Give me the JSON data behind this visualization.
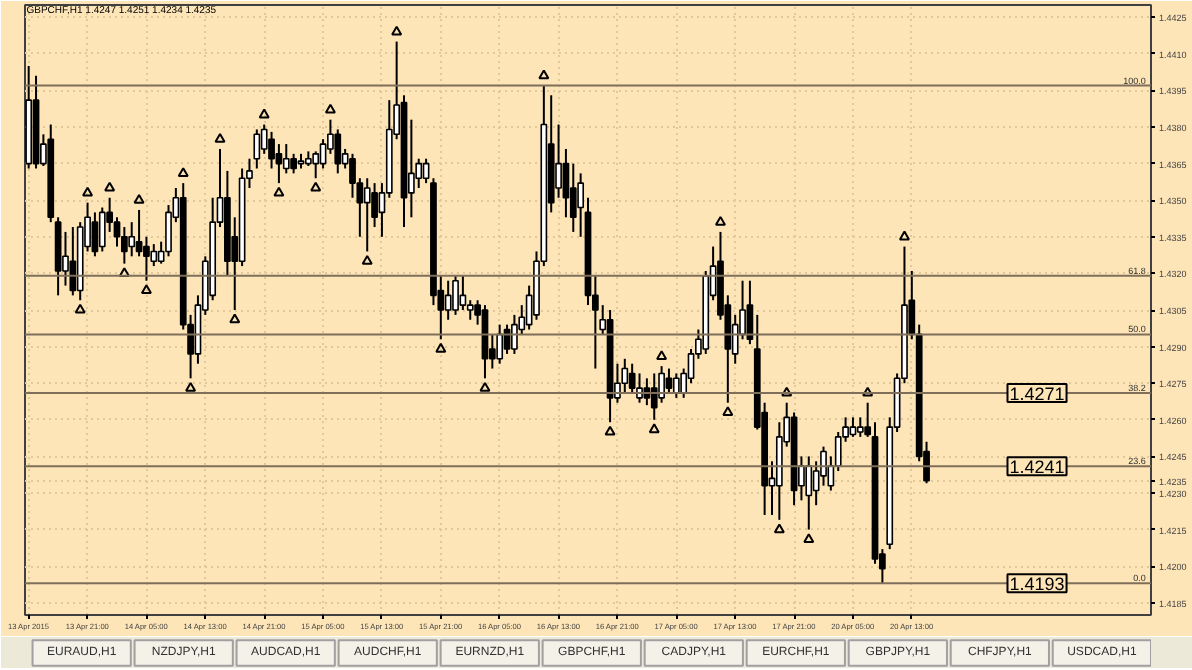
{
  "chart_data": {
    "type": "candlestick",
    "title": "GBPCHF,H1 1.4247 1.4251 1.4234 1.4235",
    "categories": [
      "13 Apr 2015",
      null,
      null,
      null,
      null,
      null,
      null,
      null,
      "13 Apr 21:00",
      null,
      null,
      null,
      null,
      null,
      null,
      null,
      "14 Apr 05:00",
      null,
      null,
      null,
      null,
      null,
      null,
      null,
      "14 Apr 13:00",
      null,
      null,
      null,
      null,
      null,
      null,
      null,
      "14 Apr 21:00",
      null,
      null,
      null,
      null,
      null,
      null,
      null,
      "15 Apr 05:00",
      null,
      null,
      null,
      null,
      null,
      null,
      null,
      "15 Apr 13:00",
      null,
      null,
      null,
      null,
      null,
      null,
      null,
      "15 Apr 21:00",
      null,
      null,
      null,
      null,
      null,
      null,
      null,
      "16 Apr 05:00",
      null,
      null,
      null,
      null,
      null,
      null,
      null,
      "16 Apr 13:00",
      null,
      null,
      null,
      null,
      null,
      null,
      null,
      "16 Apr 21:00",
      null,
      null,
      null,
      null,
      null,
      null,
      null,
      "17 Apr 05:00",
      null,
      null,
      null,
      null,
      null,
      null,
      null,
      "17 Apr 13:00",
      null,
      null,
      null,
      null,
      null,
      null,
      null,
      "17 Apr 21:00",
      null,
      null,
      null,
      null,
      null,
      null,
      null,
      "20 Apr 05:00",
      null,
      null,
      null,
      null,
      null,
      null,
      null,
      "20 Apr 13:00",
      null,
      null,
      null,
      null,
      null,
      null,
      null,
      null,
      null,
      null,
      null,
      null,
      null,
      null,
      null,
      null,
      null,
      null,
      null,
      null,
      null,
      null,
      null,
      null,
      null,
      null,
      null,
      null,
      null,
      null,
      null,
      null
    ],
    "ohlc": [
      [
        1.4365,
        1.4405,
        1.4363,
        1.4391
      ],
      [
        1.4391,
        1.4401,
        1.4363,
        1.4365
      ],
      [
        1.4365,
        1.4377,
        1.4364,
        1.4373
      ],
      [
        1.4375,
        1.4381,
        1.4341,
        1.4343
      ],
      [
        1.4341,
        1.4343,
        1.4311,
        1.4321
      ],
      [
        1.4321,
        1.4337,
        1.4315,
        1.4327
      ],
      [
        1.4325,
        1.4339,
        1.4311,
        1.4313
      ],
      [
        1.4313,
        1.4341,
        1.4309,
        1.4339
      ],
      [
        1.4331,
        1.4349,
        1.4329,
        1.4343
      ],
      [
        1.4341,
        1.4345,
        1.4327,
        1.4329
      ],
      [
        1.4331,
        1.4347,
        1.4329,
        1.4345
      ],
      [
        1.4345,
        1.4351,
        1.4337,
        1.4341
      ],
      [
        1.4341,
        1.4343,
        1.4331,
        1.4335
      ],
      [
        1.4335,
        1.4339,
        1.4324,
        1.4329
      ],
      [
        1.4331,
        1.4341,
        1.4327,
        1.4335
      ],
      [
        1.4333,
        1.4346,
        1.4327,
        1.4329
      ],
      [
        1.4331,
        1.4335,
        1.4317,
        1.4327
      ],
      [
        1.4325,
        1.4332,
        1.4323,
        1.4329
      ],
      [
        1.4325,
        1.4333,
        1.4324,
        1.4329
      ],
      [
        1.4329,
        1.4348,
        1.4327,
        1.4345
      ],
      [
        1.4343,
        1.4355,
        1.4341,
        1.4351
      ],
      [
        1.4351,
        1.4357,
        1.4297,
        1.4299
      ],
      [
        1.4299,
        1.4303,
        1.4277,
        1.4287
      ],
      [
        1.4287,
        1.4311,
        1.4283,
        1.4307
      ],
      [
        1.4305,
        1.4327,
        1.4303,
        1.4325
      ],
      [
        1.4311,
        1.4351,
        1.4309,
        1.4341
      ],
      [
        1.4341,
        1.4371,
        1.4339,
        1.4351
      ],
      [
        1.4351,
        1.4362,
        1.4319,
        1.4325
      ],
      [
        1.4335,
        1.4343,
        1.4305,
        1.4325
      ],
      [
        1.4325,
        1.4363,
        1.4323,
        1.4359
      ],
      [
        1.4359,
        1.4367,
        1.4355,
        1.4362
      ],
      [
        1.4367,
        1.4379,
        1.4363,
        1.4377
      ],
      [
        1.4371,
        1.4381,
        1.4369,
        1.4379
      ],
      [
        1.4375,
        1.4378,
        1.4363,
        1.4367
      ],
      [
        1.4369,
        1.4373,
        1.4357,
        1.4365
      ],
      [
        1.4363,
        1.4373,
        1.4361,
        1.4367
      ],
      [
        1.4367,
        1.4369,
        1.4361,
        1.4363
      ],
      [
        1.4365,
        1.4369,
        1.4363,
        1.4366
      ],
      [
        1.4365,
        1.437,
        1.4364,
        1.4367
      ],
      [
        1.4365,
        1.437,
        1.4359,
        1.4369
      ],
      [
        1.4365,
        1.4375,
        1.4363,
        1.4373
      ],
      [
        1.4371,
        1.4383,
        1.4369,
        1.4377
      ],
      [
        1.4377,
        1.4379,
        1.4361,
        1.4365
      ],
      [
        1.4365,
        1.4371,
        1.4363,
        1.4369
      ],
      [
        1.4367,
        1.4369,
        1.4351,
        1.4357
      ],
      [
        1.4357,
        1.4359,
        1.4335,
        1.4349
      ],
      [
        1.4349,
        1.4359,
        1.4329,
        1.4355
      ],
      [
        1.4353,
        1.4357,
        1.4339,
        1.4343
      ],
      [
        1.4345,
        1.4357,
        1.4335,
        1.4353
      ],
      [
        1.4353,
        1.4391,
        1.4351,
        1.4379
      ],
      [
        1.4377,
        1.4415,
        1.4375,
        1.4389
      ],
      [
        1.439,
        1.4393,
        1.4339,
        1.4351
      ],
      [
        1.4353,
        1.4383,
        1.4343,
        1.4361
      ],
      [
        1.4359,
        1.4367,
        1.4355,
        1.4365
      ],
      [
        1.4359,
        1.4367,
        1.4357,
        1.4365
      ],
      [
        1.4357,
        1.4359,
        1.4307,
        1.4311
      ],
      [
        1.4313,
        1.4319,
        1.4293,
        1.4305
      ],
      [
        1.4305,
        1.4317,
        1.4301,
        1.4311
      ],
      [
        1.4305,
        1.4319,
        1.4303,
        1.4317
      ],
      [
        1.4307,
        1.4319,
        1.4305,
        1.4311
      ],
      [
        1.4305,
        1.4309,
        1.4301,
        1.4307
      ],
      [
        1.4307,
        1.4309,
        1.4299,
        1.4303
      ],
      [
        1.4305,
        1.4307,
        1.4277,
        1.4285
      ],
      [
        1.4289,
        1.4295,
        1.4281,
        1.4285
      ],
      [
        1.4285,
        1.4299,
        1.4283,
        1.4295
      ],
      [
        1.4297,
        1.4299,
        1.4287,
        1.4289
      ],
      [
        1.4289,
        1.4303,
        1.4287,
        1.4299
      ],
      [
        1.4297,
        1.4307,
        1.4295,
        1.4302
      ],
      [
        1.4299,
        1.4315,
        1.4297,
        1.4311
      ],
      [
        1.4303,
        1.4329,
        1.4301,
        1.4325
      ],
      [
        1.4325,
        1.4397,
        1.4323,
        1.4381
      ],
      [
        1.4373,
        1.4393,
        1.4345,
        1.4349
      ],
      [
        1.4355,
        1.4381,
        1.4351,
        1.4365
      ],
      [
        1.4365,
        1.4371,
        1.4343,
        1.4351
      ],
      [
        1.4355,
        1.4365,
        1.4337,
        1.4343
      ],
      [
        1.4347,
        1.4361,
        1.4335,
        1.4357
      ],
      [
        1.4345,
        1.4351,
        1.4307,
        1.4311
      ],
      [
        1.4311,
        1.4319,
        1.4281,
        1.4305
      ],
      [
        1.4297,
        1.4307,
        1.4295,
        1.4301
      ],
      [
        1.4301,
        1.4305,
        1.4259,
        1.4269
      ],
      [
        1.4269,
        1.4283,
        1.4267,
        1.4275
      ],
      [
        1.4275,
        1.4285,
        1.4271,
        1.4281
      ],
      [
        1.4279,
        1.4283,
        1.4271,
        1.4273
      ],
      [
        1.4269,
        1.4279,
        1.4267,
        1.4273
      ],
      [
        1.4273,
        1.4277,
        1.4266,
        1.4269
      ],
      [
        1.4273,
        1.4279,
        1.426,
        1.4265
      ],
      [
        1.4269,
        1.4282,
        1.4267,
        1.4279
      ],
      [
        1.4277,
        1.4281,
        1.4271,
        1.4273
      ],
      [
        1.4271,
        1.4279,
        1.4269,
        1.4277
      ],
      [
        1.4271,
        1.4281,
        1.4269,
        1.4279
      ],
      [
        1.4277,
        1.4289,
        1.4275,
        1.4287
      ],
      [
        1.4287,
        1.4297,
        1.4285,
        1.4293
      ],
      [
        1.4289,
        1.4321,
        1.4287,
        1.4319
      ],
      [
        1.4311,
        1.4331,
        1.4309,
        1.4323
      ],
      [
        1.4325,
        1.4337,
        1.4301,
        1.4303
      ],
      [
        1.4307,
        1.4311,
        1.4267,
        1.4289
      ],
      [
        1.4287,
        1.4303,
        1.4283,
        1.4299
      ],
      [
        1.4295,
        1.4317,
        1.4293,
        1.4305
      ],
      [
        1.4307,
        1.4317,
        1.4291,
        1.4293
      ],
      [
        1.4289,
        1.4303,
        1.4256,
        1.4257
      ],
      [
        1.4263,
        1.4267,
        1.4221,
        1.4233
      ],
      [
        1.4233,
        1.4243,
        1.4221,
        1.4236
      ],
      [
        1.4233,
        1.4259,
        1.4219,
        1.4253
      ],
      [
        1.4251,
        1.4267,
        1.4249,
        1.4261
      ],
      [
        1.4261,
        1.4263,
        1.4225,
        1.4231
      ],
      [
        1.4233,
        1.4245,
        1.4227,
        1.4241
      ],
      [
        1.4229,
        1.4245,
        1.4215,
        1.4241
      ],
      [
        1.4231,
        1.4243,
        1.4225,
        1.4239
      ],
      [
        1.4237,
        1.4249,
        1.4233,
        1.4247
      ],
      [
        1.4233,
        1.4245,
        1.4231,
        1.4241
      ],
      [
        1.4241,
        1.4255,
        1.4239,
        1.4253
      ],
      [
        1.4253,
        1.4261,
        1.4251,
        1.4257
      ],
      [
        1.4254,
        1.4261,
        1.4253,
        1.4257
      ],
      [
        1.4255,
        1.4261,
        1.4253,
        1.4257
      ],
      [
        1.4257,
        1.4267,
        1.4253,
        1.4254
      ],
      [
        1.4253,
        1.4259,
        1.4201,
        1.4203
      ],
      [
        1.4205,
        1.4207,
        1.4193,
        1.4199
      ],
      [
        1.4209,
        1.4261,
        1.4207,
        1.4257
      ],
      [
        1.4257,
        1.4279,
        1.4255,
        1.4277
      ],
      [
        1.4277,
        1.4331,
        1.4275,
        1.4307
      ],
      [
        1.4309,
        1.4321,
        1.4293,
        1.4295
      ],
      [
        1.4295,
        1.4299,
        1.4243,
        1.4245
      ],
      [
        1.4247,
        1.4251,
        1.4234,
        1.4235
      ],
      null,
      null,
      null,
      null,
      null,
      null,
      null,
      null,
      null,
      null,
      null,
      null,
      null,
      null,
      null,
      null,
      null,
      null,
      null,
      null,
      null,
      null,
      null,
      null,
      null,
      null,
      null,
      null,
      null,
      null
    ],
    "series": [
      {
        "type": "scatter",
        "marker": "triangle",
        "color": "#000000",
        "values": [
          null,
          null,
          null,
          null,
          null,
          null,
          null,
          null,
          1.4353,
          null,
          null,
          1.4355,
          null,
          null,
          null,
          1.435,
          null,
          null,
          null,
          null,
          null,
          1.4361,
          null,
          null,
          null,
          null,
          1.4375,
          null,
          null,
          null,
          null,
          null,
          1.4385,
          null,
          null,
          null,
          null,
          null,
          null,
          null,
          null,
          1.4387,
          null,
          null,
          null,
          null,
          null,
          null,
          null,
          null,
          1.4419,
          null,
          null,
          null,
          null,
          null,
          null,
          null,
          null,
          null,
          null,
          null,
          null,
          null,
          null,
          null,
          null,
          null,
          null,
          null,
          1.4401,
          null,
          null,
          null,
          null,
          null,
          null,
          null,
          null,
          null,
          null,
          null,
          null,
          null,
          null,
          null,
          1.4286,
          null,
          null,
          null,
          null,
          null,
          null,
          null,
          1.4341,
          null,
          null,
          null,
          null,
          null,
          null,
          null,
          null,
          1.4271,
          null,
          null,
          null,
          null,
          null,
          null,
          null,
          null,
          null,
          null,
          1.4271,
          null,
          null,
          null,
          null,
          1.4335,
          null,
          null,
          null,
          null,
          null,
          null,
          null,
          null,
          null,
          null,
          null,
          null,
          null,
          null,
          null,
          null,
          null,
          null,
          null,
          null,
          null,
          null,
          null,
          null,
          null,
          null,
          null,
          null,
          null,
          null,
          null,
          null,
          null
        ]
      },
      {
        "type": "scatter",
        "marker": "triangle",
        "color": "#000000",
        "values": [
          null,
          null,
          null,
          null,
          null,
          null,
          null,
          1.4305,
          null,
          null,
          null,
          null,
          null,
          1.432,
          null,
          null,
          1.4313,
          null,
          null,
          null,
          null,
          null,
          1.4273,
          null,
          null,
          null,
          null,
          null,
          1.4301,
          null,
          null,
          null,
          null,
          null,
          1.4353,
          null,
          null,
          null,
          null,
          1.4355,
          null,
          null,
          null,
          null,
          null,
          null,
          1.4325,
          null,
          null,
          null,
          null,
          null,
          null,
          null,
          null,
          null,
          1.4289,
          null,
          null,
          null,
          null,
          null,
          1.4273,
          null,
          null,
          null,
          null,
          null,
          null,
          null,
          null,
          null,
          null,
          null,
          null,
          null,
          null,
          null,
          null,
          1.4255,
          null,
          null,
          null,
          null,
          null,
          1.4256,
          null,
          null,
          null,
          null,
          null,
          null,
          null,
          null,
          null,
          1.4263,
          null,
          null,
          null,
          null,
          null,
          null,
          1.4215,
          null,
          null,
          null,
          1.4211,
          null,
          null,
          null,
          null,
          null,
          null,
          null,
          null,
          null,
          null,
          null,
          null,
          null,
          null,
          null,
          null,
          null,
          null,
          null,
          null,
          null,
          null,
          null,
          null,
          null,
          null,
          null,
          null,
          null,
          null,
          null,
          null,
          null,
          null,
          null,
          null,
          null,
          null,
          null,
          null,
          null,
          null,
          null,
          null,
          null,
          null
        ]
      }
    ],
    "ylim": [
      1.418,
      1.443
    ],
    "yticks": [
      1.4425,
      {
        "value": 1.441,
        "label": "1.4410"
      },
      1.4395,
      {
        "value": 1.438,
        "label": "1.4380"
      },
      1.4365,
      {
        "value": 1.435,
        "label": "1.4350"
      },
      1.4335,
      {
        "value": 1.432,
        "label": "1.4320"
      },
      1.4305,
      {
        "value": 1.429,
        "label": "1.4290"
      },
      1.4275,
      {
        "value": 1.426,
        "label": "1.4260"
      },
      1.4245,
      1.4235,
      {
        "value": 1.423,
        "label": "1.4230"
      },
      1.4215,
      {
        "value": 1.42,
        "label": "1.4200"
      },
      1.4185
    ],
    "grid": true,
    "ref_lines": [
      {
        "axis": "y",
        "value": 1.4397,
        "color": "#7f6f5a"
      },
      {
        "axis": "y",
        "value": 1.4319,
        "color": "#7f6f5a"
      },
      {
        "axis": "y",
        "value": 1.4295,
        "color": "#7f6f5a"
      },
      {
        "axis": "y",
        "value": 1.4271,
        "label": "1.4271",
        "color": "#7f6f5a"
      },
      {
        "axis": "y",
        "value": 1.4241,
        "label": "1.4241",
        "color": "#7f6f5a"
      },
      {
        "axis": "y",
        "value": 1.4193,
        "label": "1.4193",
        "color": "#7f6f5a"
      }
    ],
    "annotations": [
      {
        "text": "100.0",
        "y": 1.4397
      },
      {
        "text": "61.8",
        "y": 1.4319
      },
      {
        "text": "50.0",
        "y": 1.4295
      },
      {
        "text": "38.2",
        "y": 1.4271
      },
      {
        "text": "23.6",
        "y": 1.4241
      },
      {
        "text": "0.0",
        "y": 1.4193
      },
      "EURAUD,H1",
      "NZDJPY,H1",
      "AUDCAD,H1",
      "AUDCHF,H1",
      "EURNZD,H1",
      "GBPCHF,H1",
      "CADJPY,H1",
      "EURCHF,H1",
      "GBPJPY,H1",
      "CHFJPY,H1",
      "USDCAD,H1"
    ]
  }
}
